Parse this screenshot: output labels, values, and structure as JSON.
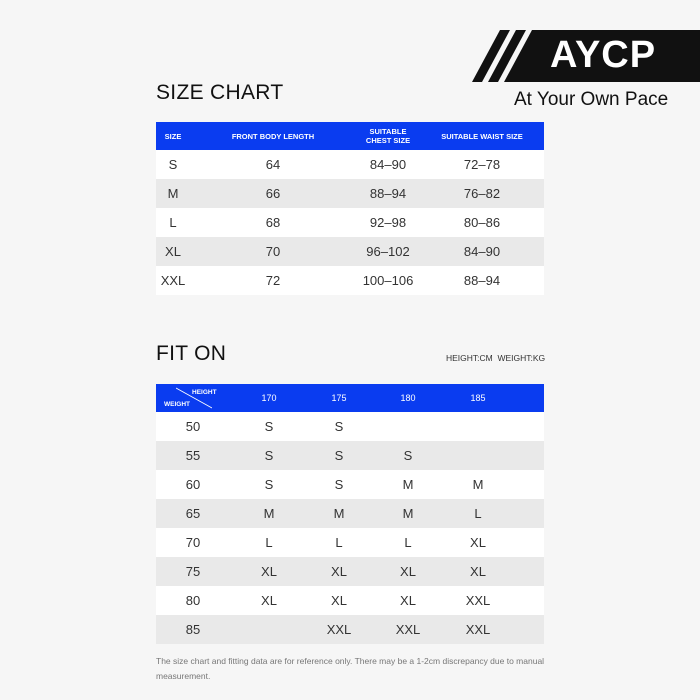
{
  "brand": {
    "logo_text": "AYCP",
    "tagline": "At Your Own Pace"
  },
  "size_chart": {
    "title": "SIZE CHART",
    "headers": [
      "SIZE",
      "FRONT BODY LENGTH",
      "SUITABLE CHEST SIZE",
      "SUITABLE WAIST SIZE"
    ],
    "rows": [
      [
        "S",
        "64",
        "84–90",
        "72–78"
      ],
      [
        "M",
        "66",
        "88–94",
        "76–82"
      ],
      [
        "L",
        "68",
        "92–98",
        "80–86"
      ],
      [
        "XL",
        "70",
        "96–102",
        "84–90"
      ],
      [
        "XXL",
        "72",
        "100–106",
        "88–94"
      ]
    ]
  },
  "fit_on": {
    "title": "FIT ON",
    "units": "HEIGHT:CM  WEIGHT:KG",
    "corner_height": "HEIGHT",
    "corner_weight": "WEIGHT",
    "headers": [
      "170",
      "175",
      "180",
      "185"
    ],
    "rows": [
      [
        "50",
        "S",
        "S",
        "",
        ""
      ],
      [
        "55",
        "S",
        "S",
        "S",
        ""
      ],
      [
        "60",
        "S",
        "S",
        "M",
        "M"
      ],
      [
        "65",
        "M",
        "M",
        "M",
        "L"
      ],
      [
        "70",
        "L",
        "L",
        "L",
        "XL"
      ],
      [
        "75",
        "XL",
        "XL",
        "XL",
        "XL"
      ],
      [
        "80",
        "XL",
        "XL",
        "XL",
        "XXL"
      ],
      [
        "85",
        "",
        "XXL",
        "XXL",
        "XXL"
      ]
    ]
  },
  "footnote": "The size chart and fitting data are for reference only. There may be a 1-2cm discrepancy due to manual measurement.",
  "colors": {
    "header": "#0a3cf0"
  }
}
